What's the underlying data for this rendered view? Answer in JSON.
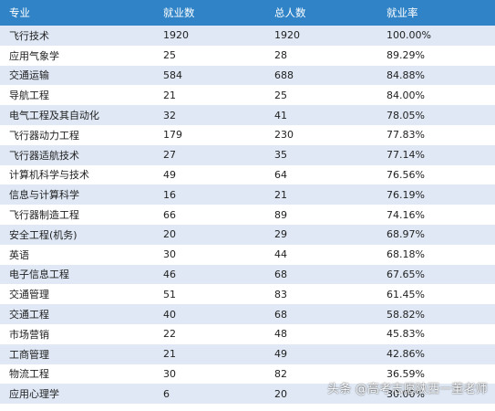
{
  "table": {
    "headers": [
      "专业",
      "就业数",
      "总人数",
      "就业率"
    ],
    "rows": [
      [
        "飞行技术",
        "1920",
        "1920",
        "100.00%"
      ],
      [
        "应用气象学",
        "25",
        "28",
        "89.29%"
      ],
      [
        "交通运输",
        "584",
        "688",
        "84.88%"
      ],
      [
        "导航工程",
        "21",
        "25",
        "84.00%"
      ],
      [
        "电气工程及其自动化",
        "32",
        "41",
        "78.05%"
      ],
      [
        "飞行器动力工程",
        "179",
        "230",
        "77.83%"
      ],
      [
        "飞行器适航技术",
        "27",
        "35",
        "77.14%"
      ],
      [
        "计算机科学与技术",
        "49",
        "64",
        "76.56%"
      ],
      [
        "信息与计算科学",
        "16",
        "21",
        "76.19%"
      ],
      [
        "飞行器制造工程",
        "66",
        "89",
        "74.16%"
      ],
      [
        "安全工程(机务)",
        "20",
        "29",
        "68.97%"
      ],
      [
        "英语",
        "30",
        "44",
        "68.18%"
      ],
      [
        "电子信息工程",
        "46",
        "68",
        "67.65%"
      ],
      [
        "交通管理",
        "51",
        "83",
        "61.45%"
      ],
      [
        "交通工程",
        "40",
        "68",
        "58.82%"
      ],
      [
        "市场营销",
        "22",
        "48",
        "45.83%"
      ],
      [
        "工商管理",
        "21",
        "49",
        "42.86%"
      ],
      [
        "物流工程",
        "30",
        "82",
        "36.59%"
      ],
      [
        "应用心理学",
        "6",
        "20",
        "30.00%"
      ]
    ]
  },
  "watermark": "头条 @高考志愿陕西一董老师",
  "colors": {
    "header_bg": "#2f83c6",
    "stripe_bg": "#dfe8f4",
    "row_bg": "#ffffff"
  }
}
